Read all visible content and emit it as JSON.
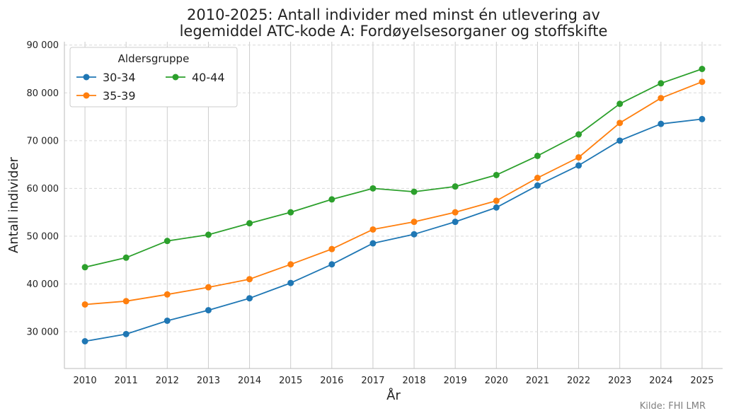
{
  "chart_data": {
    "type": "line",
    "title_lines": [
      "2010-2025: Antall individer med minst én utlevering av",
      "legemiddel ATC-kode A: Fordøyelsesorganer og stoffskifte"
    ],
    "xlabel": "År",
    "ylabel": "Antall individer",
    "x": [
      2010,
      2011,
      2012,
      2013,
      2014,
      2015,
      2016,
      2017,
      2018,
      2019,
      2020,
      2021,
      2022,
      2023,
      2024,
      2025
    ],
    "x_tick_labels": [
      "2010",
      "2011",
      "2012",
      "2013",
      "2014",
      "2015",
      "2016",
      "2017",
      "2018",
      "2019",
      "2020",
      "2021",
      "2022",
      "2023",
      "2024",
      "2025"
    ],
    "ylim": [
      22300,
      90700
    ],
    "y_ticks": [
      30000,
      40000,
      50000,
      60000,
      70000,
      80000,
      90000
    ],
    "y_tick_labels": [
      "30 000",
      "40 000",
      "50 000",
      "60 000",
      "70 000",
      "80 000",
      "90 000"
    ],
    "grid": "horizontal dashed, vertical solid",
    "legend_title": "Aldersgruppe",
    "legend_placement": "top-left",
    "series": [
      {
        "name": "30-34",
        "color": "#1f77b4",
        "values": [
          28000,
          29500,
          32300,
          34500,
          37000,
          40200,
          44100,
          48500,
          50400,
          53000,
          56000,
          60600,
          64800,
          70000,
          73500,
          74500
        ]
      },
      {
        "name": "35-39",
        "color": "#ff7f0e",
        "values": [
          35700,
          36400,
          37800,
          39300,
          41000,
          44100,
          47300,
          51400,
          53000,
          55000,
          57400,
          62200,
          66500,
          73700,
          78900,
          82300
        ]
      },
      {
        "name": "40-44",
        "color": "#2ca02c",
        "values": [
          43500,
          45500,
          49000,
          50300,
          52700,
          55000,
          57700,
          60000,
          59300,
          60400,
          62800,
          66800,
          71300,
          77700,
          82000,
          85000
        ]
      }
    ],
    "source": "Kilde: FHI LMR"
  }
}
